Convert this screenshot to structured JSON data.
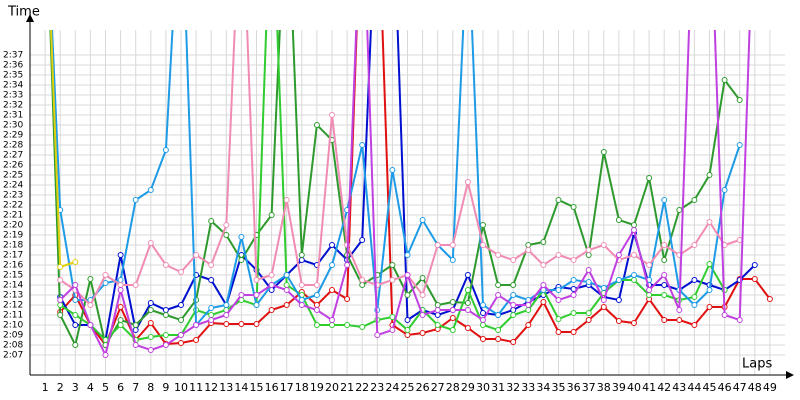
{
  "chart_data": {
    "type": "line",
    "y_label": "Time",
    "x_label": "Laps",
    "x": [
      1,
      2,
      3,
      4,
      5,
      6,
      7,
      8,
      9,
      10,
      11,
      12,
      13,
      14,
      15,
      16,
      17,
      18,
      19,
      20,
      21,
      22,
      23,
      24,
      25,
      26,
      27,
      28,
      29,
      30,
      31,
      32,
      33,
      34,
      35,
      36,
      37,
      38,
      39,
      40,
      41,
      42,
      43,
      44,
      45,
      46,
      47,
      48,
      49
    ],
    "xlim": [
      0,
      50
    ],
    "ylim": [
      125,
      159.5
    ],
    "yticks": [
      {
        "value": 127,
        "label": "2:07"
      },
      {
        "value": 128,
        "label": "2:08"
      },
      {
        "value": 129,
        "label": "2:09"
      },
      {
        "value": 130,
        "label": "2:10"
      },
      {
        "value": 131,
        "label": "2:11"
      },
      {
        "value": 132,
        "label": "2:12"
      },
      {
        "value": 133,
        "label": "2:13"
      },
      {
        "value": 134,
        "label": "2:14"
      },
      {
        "value": 135,
        "label": "2:15"
      },
      {
        "value": 136,
        "label": "2:16"
      },
      {
        "value": 137,
        "label": "2:17"
      },
      {
        "value": 138,
        "label": "2:18"
      },
      {
        "value": 139,
        "label": "2:19"
      },
      {
        "value": 140,
        "label": "2:20"
      },
      {
        "value": 141,
        "label": "2:21"
      },
      {
        "value": 142,
        "label": "2:22"
      },
      {
        "value": 143,
        "label": "2:23"
      },
      {
        "value": 144,
        "label": "2:24"
      },
      {
        "value": 145,
        "label": "2:25"
      },
      {
        "value": 146,
        "label": "2:26"
      },
      {
        "value": 147,
        "label": "2:27"
      },
      {
        "value": 148,
        "label": "2:28"
      },
      {
        "value": 149,
        "label": "2:29"
      },
      {
        "value": 150,
        "label": "2:30"
      },
      {
        "value": 151,
        "label": "2:31"
      },
      {
        "value": 152,
        "label": "2:32"
      },
      {
        "value": 153,
        "label": "2:33"
      },
      {
        "value": 154,
        "label": "2:34"
      },
      {
        "value": 155,
        "label": "2:35"
      },
      {
        "value": 156,
        "label": "2:36"
      },
      {
        "value": 157,
        "label": "2:37"
      }
    ],
    "grid": true,
    "series": [
      {
        "color": "#e01010",
        "values": [
          null,
          131.3,
          133,
          130,
          128,
          131.8,
          128.5,
          130.2,
          128.1,
          128.2,
          128.5,
          130.2,
          130.1,
          130.1,
          130.1,
          131.5,
          132,
          133.3,
          132,
          133.5,
          132.6,
          175,
          175,
          130,
          129,
          129.2,
          129.6,
          130.7,
          129.7,
          128.6,
          128.6,
          128.3,
          130,
          132.3,
          129.3,
          129.3,
          130.5,
          131.8,
          130.4,
          130.2,
          132.6,
          130.5,
          130.5,
          130,
          131.8,
          131.8,
          134.6,
          134.6,
          132.6
        ]
      },
      {
        "color": "#0010d0",
        "values": [
          null,
          132.8,
          130,
          130,
          128.5,
          137,
          129.5,
          132.2,
          131.5,
          132,
          135,
          134.5,
          132,
          137,
          135.5,
          133.5,
          135,
          136.5,
          136,
          138,
          136.5,
          138.5,
          175,
          175,
          130.5,
          131.5,
          131,
          131.5,
          135,
          131.2,
          131,
          131.5,
          132.3,
          133,
          133.8,
          133.6,
          134,
          132.8,
          132.5,
          139.2,
          134,
          134,
          133.5,
          134.5,
          134,
          133.5,
          134.5,
          136,
          null
        ]
      },
      {
        "color": "#2e9a2e",
        "values": [
          175,
          131,
          128,
          134.6,
          128,
          130.5,
          130,
          131.5,
          131,
          130.5,
          132.5,
          140.4,
          139,
          136.5,
          139,
          141,
          175,
          137,
          150,
          148.5,
          137,
          134,
          135,
          136,
          133,
          134.7,
          132,
          132.3,
          132.2,
          140,
          134,
          134,
          138,
          138.3,
          142.5,
          141.8,
          137,
          147.3,
          140.5,
          140,
          144.7,
          136.5,
          141.5,
          142.5,
          145,
          154.5,
          152.5,
          null,
          null
        ]
      },
      {
        "color": "#30cc30",
        "values": [
          null,
          132,
          131,
          130,
          128.5,
          130,
          128.5,
          128.8,
          129,
          129,
          131.5,
          131,
          131.5,
          132.5,
          132,
          175,
          134,
          133,
          130,
          130,
          130,
          129.8,
          130.5,
          130.8,
          129.5,
          131.5,
          130,
          129.5,
          133.5,
          130,
          129.5,
          131,
          131.5,
          133.5,
          130.6,
          131.2,
          131.2,
          133.2,
          134.5,
          134.5,
          133,
          133,
          132.5,
          132.8,
          136.1,
          133.5,
          null,
          null,
          null
        ]
      },
      {
        "color": "#1e9be6",
        "values": [
          175,
          141.5,
          132.5,
          132.5,
          134.2,
          134.5,
          142.5,
          143.5,
          147.5,
          175,
          130,
          131.7,
          132,
          138.8,
          132,
          134,
          135,
          132.5,
          133,
          136,
          141.5,
          148,
          131.5,
          145.5,
          137,
          140.5,
          138,
          136.5,
          170,
          132,
          131,
          133,
          132.5,
          133.5,
          133.5,
          134.5,
          134.3,
          133.7,
          134.5,
          135,
          134.5,
          142.5,
          133.5,
          132,
          133.5,
          143.5,
          148,
          null,
          null
        ]
      },
      {
        "color": "#f08cb4",
        "values": [
          null,
          134.5,
          133.5,
          132,
          135,
          134,
          134,
          138.2,
          136,
          135.3,
          137,
          136,
          140,
          175,
          134.5,
          135,
          142.5,
          134,
          134,
          151,
          138,
          134.5,
          134,
          134.5,
          135,
          133,
          138,
          138,
          144.3,
          138,
          137,
          136.5,
          137.5,
          136,
          137,
          136.5,
          137.5,
          138,
          136.5,
          137,
          136,
          138,
          137,
          138,
          140.3,
          138,
          138.5,
          null,
          null
        ]
      },
      {
        "color": "#c040e0",
        "values": [
          null,
          132.5,
          134,
          130,
          127,
          133.5,
          128,
          127.5,
          128,
          129,
          130,
          130.5,
          131,
          133,
          133,
          134,
          133.5,
          132,
          131.5,
          130.5,
          136,
          175,
          129,
          129.5,
          135,
          131,
          131.5,
          131.5,
          131.5,
          130.5,
          133,
          132,
          132,
          134,
          132.5,
          133,
          135.5,
          132.5,
          137,
          139.5,
          133.5,
          135,
          131.5,
          175,
          175,
          131,
          130.5,
          175,
          null
        ]
      },
      {
        "color": "#e0d010",
        "values": [
          175,
          135.8,
          136.3,
          null,
          null,
          null,
          null,
          null,
          null,
          null,
          null,
          null,
          null,
          null,
          null,
          null,
          null,
          null,
          null,
          null,
          null,
          null,
          null,
          null,
          null,
          null,
          null,
          null,
          null,
          null,
          null,
          null,
          null,
          null,
          null,
          null,
          null,
          null,
          null,
          null,
          null,
          null,
          null,
          null,
          null,
          null,
          null,
          null,
          null
        ]
      }
    ]
  }
}
